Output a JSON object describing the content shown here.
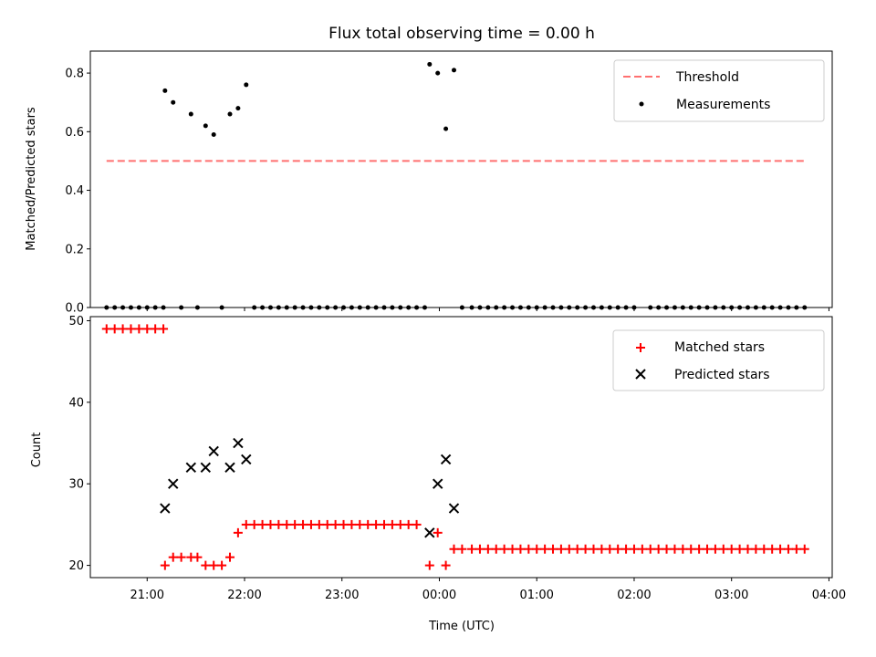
{
  "chart_data": [
    {
      "type": "scatter",
      "title": "Flux total observing time = 0.00 h",
      "ylabel": "Matched/Predicted stars",
      "xlabel": "",
      "ylim": [
        0,
        0.875
      ],
      "yticks": [
        "0.0",
        "0.2",
        "0.4",
        "0.6",
        "0.8"
      ],
      "xlim": [
        "20:25",
        "04:02"
      ],
      "xticks": [
        "21:00",
        "22:00",
        "23:00",
        "00:00",
        "01:00",
        "02:00",
        "03:00",
        "04:00"
      ],
      "grid": false,
      "legend_position": "top-right",
      "threshold": {
        "name": "Threshold",
        "value": 0.5,
        "x_range": [
          "20:35",
          "03:45"
        ],
        "color": "#ff7070",
        "style": "dashed"
      },
      "series": [
        {
          "name": "Measurements",
          "marker": "dot",
          "color": "#000000",
          "points": [
            [
              "20:35",
              0.0
            ],
            [
              "20:40",
              0.0
            ],
            [
              "20:45",
              0.0
            ],
            [
              "20:50",
              0.0
            ],
            [
              "20:55",
              0.0
            ],
            [
              "21:00",
              0.0
            ],
            [
              "21:05",
              0.0
            ],
            [
              "21:10",
              0.0
            ],
            [
              "21:11",
              0.74
            ],
            [
              "21:16",
              0.7
            ],
            [
              "21:21",
              0.0
            ],
            [
              "21:27",
              0.66
            ],
            [
              "21:31",
              0.0
            ],
            [
              "21:36",
              0.62
            ],
            [
              "21:41",
              0.59
            ],
            [
              "21:46",
              0.0
            ],
            [
              "21:51",
              0.66
            ],
            [
              "21:56",
              0.68
            ],
            [
              "22:01",
              0.76
            ],
            [
              "22:06",
              0.0
            ],
            [
              "22:11",
              0.0
            ],
            [
              "22:16",
              0.0
            ],
            [
              "22:21",
              0.0
            ],
            [
              "22:26",
              0.0
            ],
            [
              "22:31",
              0.0
            ],
            [
              "22:36",
              0.0
            ],
            [
              "22:41",
              0.0
            ],
            [
              "22:46",
              0.0
            ],
            [
              "22:51",
              0.0
            ],
            [
              "22:56",
              0.0
            ],
            [
              "23:01",
              0.0
            ],
            [
              "23:06",
              0.0
            ],
            [
              "23:11",
              0.0
            ],
            [
              "23:16",
              0.0
            ],
            [
              "23:21",
              0.0
            ],
            [
              "23:26",
              0.0
            ],
            [
              "23:31",
              0.0
            ],
            [
              "23:36",
              0.0
            ],
            [
              "23:41",
              0.0
            ],
            [
              "23:46",
              0.0
            ],
            [
              "23:51",
              0.0
            ],
            [
              "23:54",
              0.83
            ],
            [
              "23:59",
              0.8
            ],
            [
              "00:04",
              0.61
            ],
            [
              "00:09",
              0.81
            ],
            [
              "00:14",
              0.0
            ],
            [
              "00:20",
              0.0
            ],
            [
              "00:25",
              0.0
            ],
            [
              "00:30",
              0.0
            ],
            [
              "00:35",
              0.0
            ],
            [
              "00:40",
              0.0
            ],
            [
              "00:45",
              0.0
            ],
            [
              "00:50",
              0.0
            ],
            [
              "00:55",
              0.0
            ],
            [
              "01:00",
              0.0
            ],
            [
              "01:05",
              0.0
            ],
            [
              "01:10",
              0.0
            ],
            [
              "01:15",
              0.0
            ],
            [
              "01:20",
              0.0
            ],
            [
              "01:25",
              0.0
            ],
            [
              "01:30",
              0.0
            ],
            [
              "01:35",
              0.0
            ],
            [
              "01:40",
              0.0
            ],
            [
              "01:45",
              0.0
            ],
            [
              "01:50",
              0.0
            ],
            [
              "01:55",
              0.0
            ],
            [
              "02:00",
              0.0
            ],
            [
              "02:10",
              0.0
            ],
            [
              "02:15",
              0.0
            ],
            [
              "02:20",
              0.0
            ],
            [
              "02:25",
              0.0
            ],
            [
              "02:30",
              0.0
            ],
            [
              "02:35",
              0.0
            ],
            [
              "02:40",
              0.0
            ],
            [
              "02:45",
              0.0
            ],
            [
              "02:50",
              0.0
            ],
            [
              "02:55",
              0.0
            ],
            [
              "03:00",
              0.0
            ],
            [
              "03:05",
              0.0
            ],
            [
              "03:10",
              0.0
            ],
            [
              "03:15",
              0.0
            ],
            [
              "03:20",
              0.0
            ],
            [
              "03:25",
              0.0
            ],
            [
              "03:30",
              0.0
            ],
            [
              "03:35",
              0.0
            ],
            [
              "03:40",
              0.0
            ],
            [
              "03:45",
              0.0
            ]
          ]
        }
      ]
    },
    {
      "type": "scatter",
      "title": "",
      "ylabel": "Count",
      "xlabel": "Time (UTC)",
      "ylim": [
        18.5,
        50.5
      ],
      "yticks": [
        "20",
        "30",
        "40",
        "50"
      ],
      "xlim": [
        "20:25",
        "04:02"
      ],
      "xticks": [
        "21:00",
        "22:00",
        "23:00",
        "00:00",
        "01:00",
        "02:00",
        "03:00",
        "04:00"
      ],
      "grid": false,
      "legend_position": "top-right",
      "series": [
        {
          "name": "Matched stars",
          "marker": "plus",
          "color": "#ff0000",
          "points": [
            [
              "20:35",
              49
            ],
            [
              "20:40",
              49
            ],
            [
              "20:45",
              49
            ],
            [
              "20:50",
              49
            ],
            [
              "20:55",
              49
            ],
            [
              "21:00",
              49
            ],
            [
              "21:05",
              49
            ],
            [
              "21:10",
              49
            ],
            [
              "21:11",
              20
            ],
            [
              "21:16",
              21
            ],
            [
              "21:21",
              21
            ],
            [
              "21:27",
              21
            ],
            [
              "21:31",
              21
            ],
            [
              "21:36",
              20
            ],
            [
              "21:41",
              20
            ],
            [
              "21:46",
              20
            ],
            [
              "21:51",
              21
            ],
            [
              "21:56",
              24
            ],
            [
              "22:01",
              25
            ],
            [
              "22:06",
              25
            ],
            [
              "22:11",
              25
            ],
            [
              "22:16",
              25
            ],
            [
              "22:21",
              25
            ],
            [
              "22:26",
              25
            ],
            [
              "22:31",
              25
            ],
            [
              "22:36",
              25
            ],
            [
              "22:41",
              25
            ],
            [
              "22:46",
              25
            ],
            [
              "22:51",
              25
            ],
            [
              "22:56",
              25
            ],
            [
              "23:01",
              25
            ],
            [
              "23:06",
              25
            ],
            [
              "23:11",
              25
            ],
            [
              "23:16",
              25
            ],
            [
              "23:21",
              25
            ],
            [
              "23:26",
              25
            ],
            [
              "23:31",
              25
            ],
            [
              "23:36",
              25
            ],
            [
              "23:41",
              25
            ],
            [
              "23:46",
              25
            ],
            [
              "23:54",
              20
            ],
            [
              "23:59",
              24
            ],
            [
              "00:04",
              20
            ],
            [
              "00:09",
              22
            ],
            [
              "00:14",
              22
            ],
            [
              "00:20",
              22
            ],
            [
              "00:25",
              22
            ],
            [
              "00:30",
              22
            ],
            [
              "00:35",
              22
            ],
            [
              "00:40",
              22
            ],
            [
              "00:45",
              22
            ],
            [
              "00:50",
              22
            ],
            [
              "00:55",
              22
            ],
            [
              "01:00",
              22
            ],
            [
              "01:05",
              22
            ],
            [
              "01:10",
              22
            ],
            [
              "01:15",
              22
            ],
            [
              "01:20",
              22
            ],
            [
              "01:25",
              22
            ],
            [
              "01:30",
              22
            ],
            [
              "01:35",
              22
            ],
            [
              "01:40",
              22
            ],
            [
              "01:45",
              22
            ],
            [
              "01:50",
              22
            ],
            [
              "01:55",
              22
            ],
            [
              "02:00",
              22
            ],
            [
              "02:05",
              22
            ],
            [
              "02:10",
              22
            ],
            [
              "02:15",
              22
            ],
            [
              "02:20",
              22
            ],
            [
              "02:25",
              22
            ],
            [
              "02:30",
              22
            ],
            [
              "02:35",
              22
            ],
            [
              "02:40",
              22
            ],
            [
              "02:45",
              22
            ],
            [
              "02:50",
              22
            ],
            [
              "02:55",
              22
            ],
            [
              "03:00",
              22
            ],
            [
              "03:05",
              22
            ],
            [
              "03:10",
              22
            ],
            [
              "03:15",
              22
            ],
            [
              "03:20",
              22
            ],
            [
              "03:25",
              22
            ],
            [
              "03:30",
              22
            ],
            [
              "03:35",
              22
            ],
            [
              "03:40",
              22
            ],
            [
              "03:45",
              22
            ]
          ]
        },
        {
          "name": "Predicted stars",
          "marker": "x",
          "color": "#000000",
          "points": [
            [
              "21:11",
              27
            ],
            [
              "21:16",
              30
            ],
            [
              "21:27",
              32
            ],
            [
              "21:36",
              32
            ],
            [
              "21:41",
              34
            ],
            [
              "21:51",
              32
            ],
            [
              "21:56",
              35
            ],
            [
              "22:01",
              33
            ],
            [
              "23:54",
              24
            ],
            [
              "23:59",
              30
            ],
            [
              "00:04",
              33
            ],
            [
              "00:09",
              27
            ]
          ]
        }
      ]
    }
  ]
}
